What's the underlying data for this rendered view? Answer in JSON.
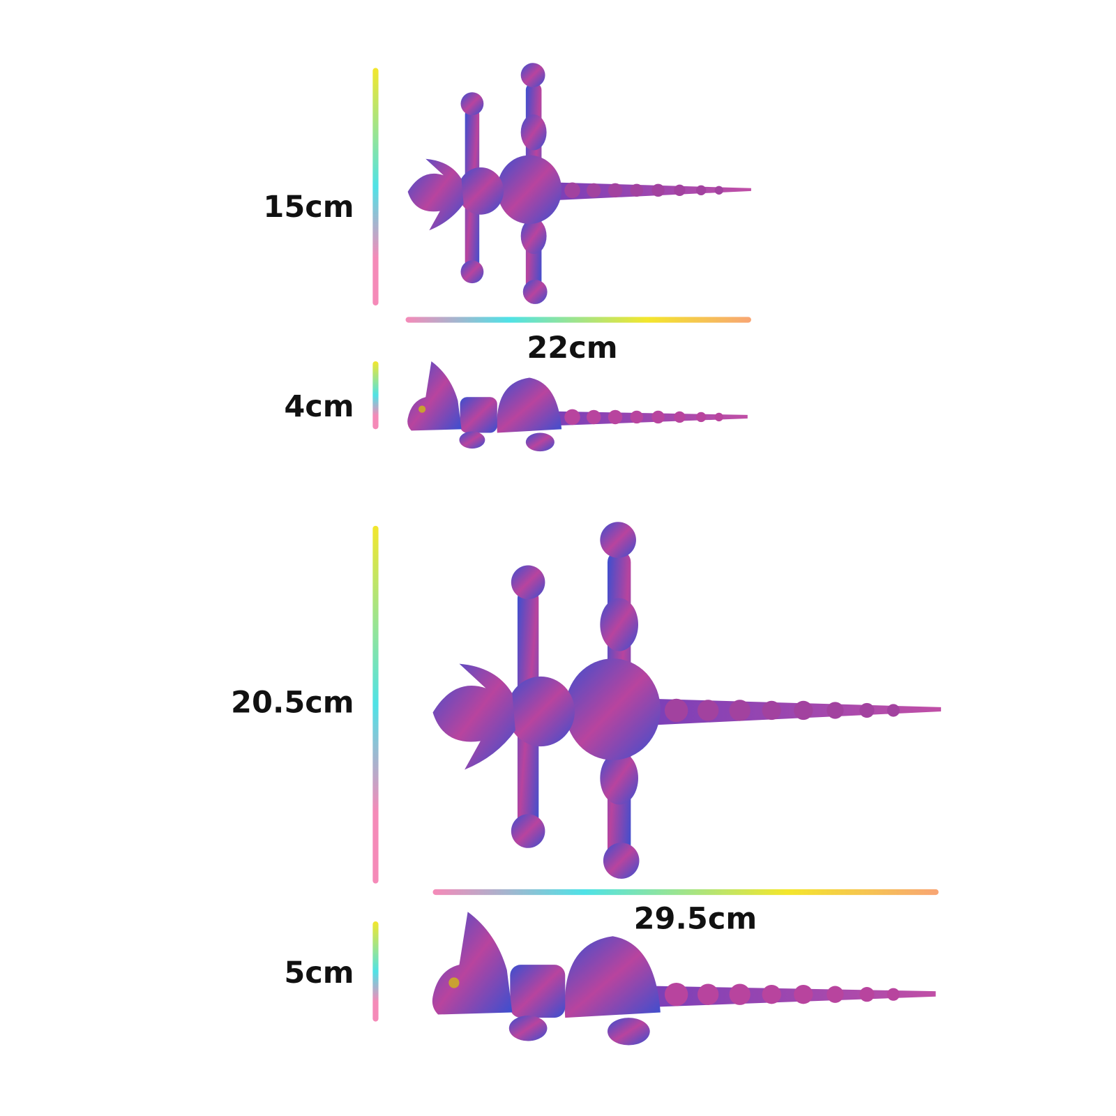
{
  "dimensions": {
    "small_height_top": "15cm",
    "small_length": "22cm",
    "small_height_side": "4cm",
    "large_height_top": "20.5cm",
    "large_length": "29.5cm",
    "large_height_side": "5cm"
  },
  "colors": {
    "figure_blue": "#3a4fd0",
    "figure_magenta": "#b8449e",
    "bar_yellow": "#f3e62c",
    "bar_cyan": "#4fe2e6",
    "bar_pink": "#f58ab8",
    "bar_orange": "#f8a574"
  }
}
